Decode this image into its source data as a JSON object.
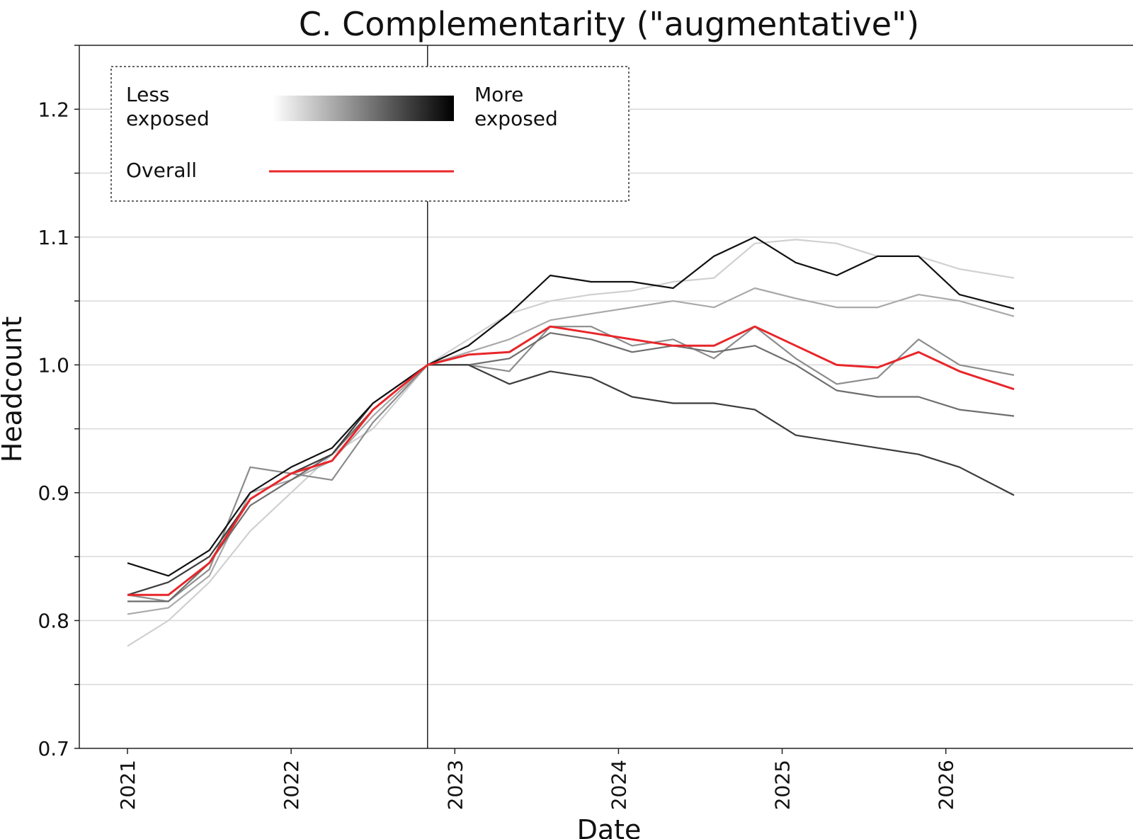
{
  "chart_data": {
    "type": "line",
    "title": "C. Complementarity (\"augmentative\")",
    "xlabel": "Date",
    "ylabel": "Headcount",
    "xlim": [
      "2021-01",
      "2026-06"
    ],
    "ylim": [
      0.7,
      1.25
    ],
    "xticks": [
      "2021",
      "2022",
      "2023",
      "2024",
      "2025",
      "2026"
    ],
    "yticks": [
      "0.7",
      "0.8",
      "0.9",
      "1.0",
      "1.1",
      "1.2"
    ],
    "grid": "horizontal",
    "reference_line": "2022-11",
    "legend": {
      "position": "top-left",
      "less_label": "Less\nexposed",
      "more_label": "More\nexposed",
      "overall_label": "Overall"
    },
    "colors": {
      "overall": "#e8262a",
      "vline": "#222222",
      "grid": "#d9d9d9",
      "gradient_start": "#ffffff",
      "gradient_end": "#000000"
    },
    "x": [
      "2021-01",
      "2021-04",
      "2021-07",
      "2021-10",
      "2022-01",
      "2022-04",
      "2022-07",
      "2022-11",
      "2023-02",
      "2023-05",
      "2023-08",
      "2023-11",
      "2024-02",
      "2024-05",
      "2024-08",
      "2024-11",
      "2025-02",
      "2025-05",
      "2025-08",
      "2025-11",
      "2026-02",
      "2026-06"
    ],
    "series": [
      {
        "color": "#d0d0d0",
        "values": [
          0.78,
          0.8,
          0.83,
          0.87,
          0.9,
          0.93,
          0.95,
          1.0,
          1.02,
          1.04,
          1.05,
          1.055,
          1.058,
          1.065,
          1.068,
          1.095,
          1.098,
          1.095,
          1.085,
          1.085,
          1.075,
          1.068
        ]
      },
      {
        "color": "#a9a9a9",
        "values": [
          0.805,
          0.81,
          0.835,
          0.9,
          0.91,
          0.925,
          0.96,
          1.0,
          1.01,
          1.02,
          1.035,
          1.04,
          1.045,
          1.05,
          1.045,
          1.06,
          1.052,
          1.045,
          1.045,
          1.055,
          1.05,
          1.038
        ]
      },
      {
        "color": "#8c8c8c",
        "values": [
          0.82,
          0.815,
          0.84,
          0.92,
          0.915,
          0.91,
          0.955,
          1.0,
          1.0,
          0.995,
          1.03,
          1.03,
          1.015,
          1.02,
          1.005,
          1.03,
          1.005,
          0.985,
          0.99,
          1.02,
          1.0,
          0.992
        ]
      },
      {
        "color": "#6e6e6e",
        "values": [
          0.815,
          0.815,
          0.845,
          0.89,
          0.91,
          0.93,
          0.965,
          1.0,
          1.0,
          1.005,
          1.025,
          1.02,
          1.01,
          1.015,
          1.01,
          1.015,
          1.0,
          0.98,
          0.975,
          0.975,
          0.965,
          0.96
        ]
      },
      {
        "color": "#3c3c3c",
        "values": [
          0.82,
          0.83,
          0.85,
          0.895,
          0.915,
          0.93,
          0.97,
          1.0,
          1.0,
          0.985,
          0.995,
          0.99,
          0.975,
          0.97,
          0.97,
          0.965,
          0.945,
          0.94,
          0.935,
          0.93,
          0.92,
          0.898
        ]
      },
      {
        "color": "#111111",
        "values": [
          0.845,
          0.835,
          0.855,
          0.9,
          0.92,
          0.935,
          0.97,
          1.0,
          1.015,
          1.04,
          1.07,
          1.065,
          1.065,
          1.06,
          1.085,
          1.1,
          1.08,
          1.07,
          1.085,
          1.085,
          1.055,
          1.044
        ]
      },
      {
        "name": "Overall",
        "color": "#e8262a",
        "values": [
          0.82,
          0.82,
          0.845,
          0.895,
          0.915,
          0.925,
          0.965,
          1.0,
          1.008,
          1.01,
          1.03,
          1.025,
          1.02,
          1.015,
          1.015,
          1.03,
          1.015,
          1.0,
          0.998,
          1.01,
          0.995,
          0.981
        ]
      }
    ]
  }
}
